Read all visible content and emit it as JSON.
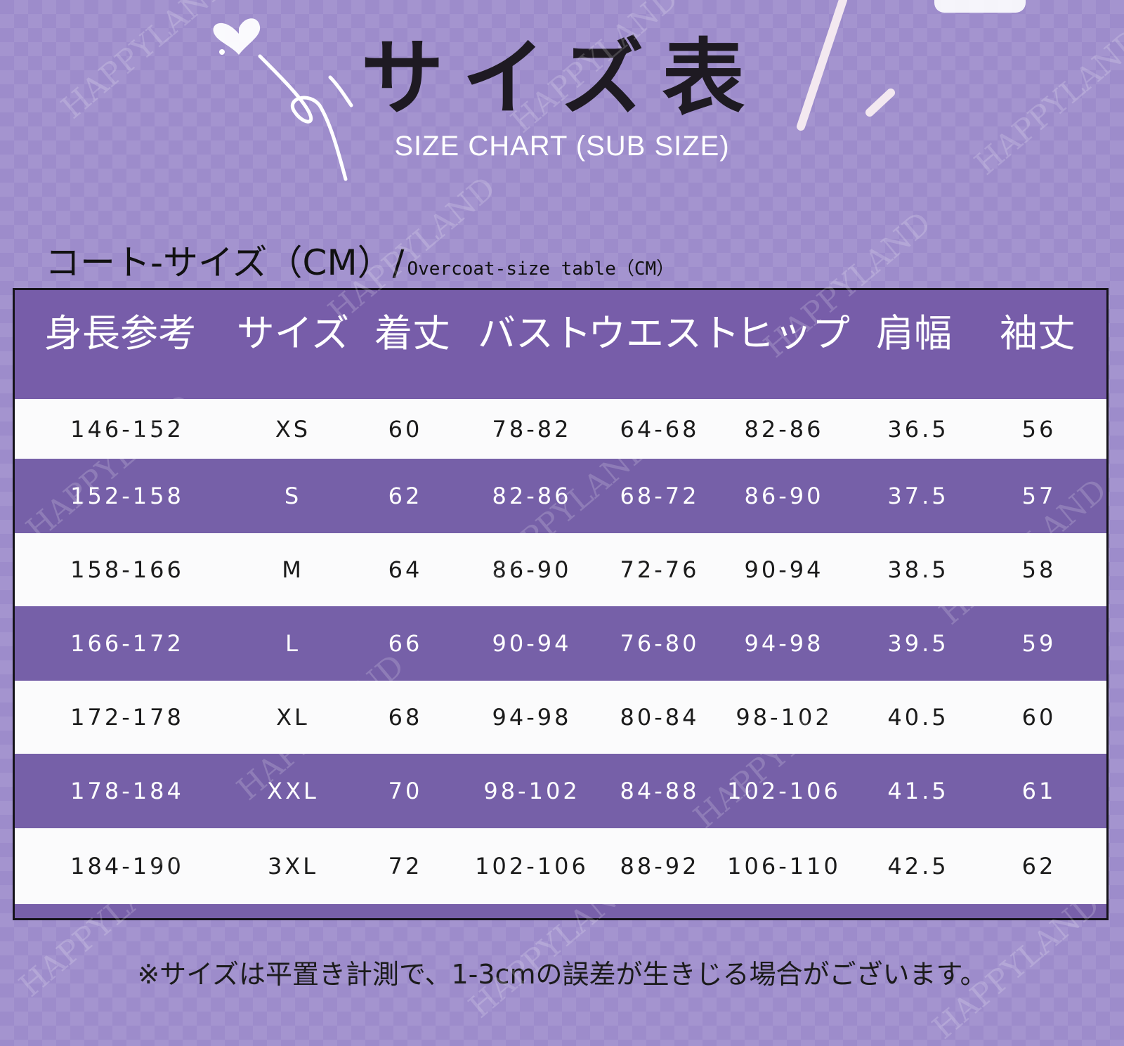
{
  "header": {
    "title": "サイズ表",
    "subtitle": "SIZE CHART (SUB SIZE)"
  },
  "table_heading": {
    "japanese": "コート-サイズ（CM）/",
    "english": "Overcoat-size table（CM）"
  },
  "table": {
    "columns": [
      "身長参考",
      "サイズ",
      "着丈",
      "バスト",
      "ウエスト",
      "ヒップ",
      "肩幅",
      "袖丈"
    ],
    "rows": [
      [
        "146-152",
        "XS",
        "60",
        "78-82",
        "64-68",
        "82-86",
        "36.5",
        "56"
      ],
      [
        "152-158",
        "S",
        "62",
        "82-86",
        "68-72",
        "86-90",
        "37.5",
        "57"
      ],
      [
        "158-166",
        "M",
        "64",
        "86-90",
        "72-76",
        "90-94",
        "38.5",
        "58"
      ],
      [
        "166-172",
        "L",
        "66",
        "90-94",
        "76-80",
        "94-98",
        "39.5",
        "59"
      ],
      [
        "172-178",
        "XL",
        "68",
        "94-98",
        "80-84",
        "98-102",
        "40.5",
        "60"
      ],
      [
        "178-184",
        "XXL",
        "70",
        "98-102",
        "84-88",
        "102-106",
        "41.5",
        "61"
      ],
      [
        "184-190",
        "3XL",
        "72",
        "102-106",
        "88-92",
        "106-110",
        "42.5",
        "62"
      ]
    ]
  },
  "footnote": "※サイズは平置き計測で、1-3cmの誤差が生きじる場合がございます。",
  "watermark": "HAPPYLAND",
  "colors": {
    "background": "#9d8ccb",
    "header_row": "#775da9",
    "dark_row": "#7660a8",
    "light_row": "#fbfbfc",
    "border": "#15131a"
  }
}
